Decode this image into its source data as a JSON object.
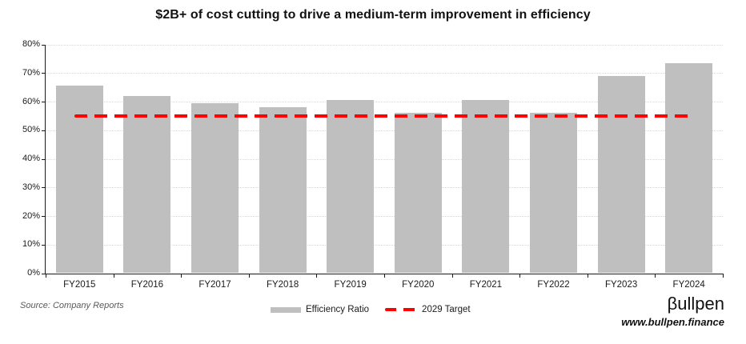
{
  "title": "$2B+ of cost cutting to drive a medium-term improvement in efficiency",
  "source_note": "Source: Company Reports",
  "branding": {
    "logo": "βullpen",
    "website": "www.bullpen.finance"
  },
  "legend": [
    {
      "label": "Efficiency Ratio",
      "swatch": "bar-swatch"
    },
    {
      "label": "2029 Target",
      "swatch": "dash-swatch"
    }
  ],
  "colors": {
    "bar": "#BFBFBF",
    "target": "#FF0000",
    "gridline": "#D8D8D8",
    "axis": "#1A1A1A",
    "source_text": "#595959"
  },
  "chart_data": {
    "type": "bar",
    "categories": [
      "FY2015",
      "FY2016",
      "FY2017",
      "FY2018",
      "FY2019",
      "FY2020",
      "FY2021",
      "FY2022",
      "FY2023",
      "FY2024"
    ],
    "series": [
      {
        "name": "Efficiency Ratio",
        "values": [
          65.5,
          62,
          59.5,
          58,
          60.5,
          56,
          60.5,
          56,
          69,
          73.5
        ]
      }
    ],
    "target_line": {
      "name": "2029 Target",
      "value": 55,
      "style": "dashed",
      "color": "#FF0000"
    },
    "title": "$2B+ of cost cutting to drive a medium-term improvement in efficiency",
    "xlabel": "",
    "ylabel": "",
    "ylim": [
      0,
      80
    ],
    "ytick_step": 10,
    "ytick_format": "percent",
    "grid": true,
    "legend_position": "bottom"
  }
}
